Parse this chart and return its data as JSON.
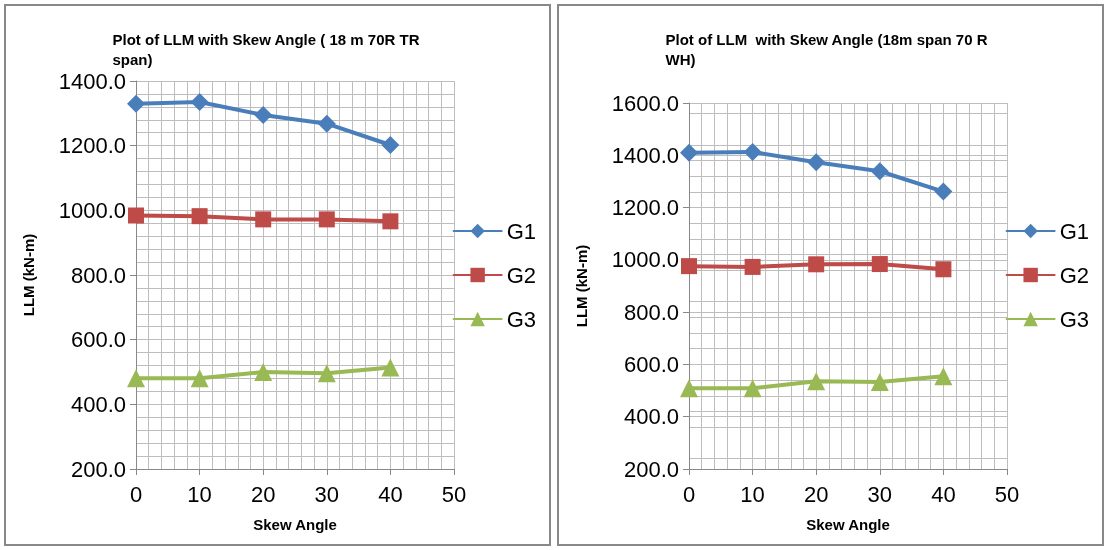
{
  "chart_data": [
    {
      "type": "line",
      "title": "Plot of LLM with Skew Angle ( 18 m 70R TR span)",
      "xlabel": "Skew Angle",
      "ylabel": "LLM (kN-m)",
      "x": [
        0,
        10,
        20,
        30,
        40
      ],
      "xlim": [
        0,
        50
      ],
      "xticks": [
        0,
        10,
        20,
        30,
        40,
        50
      ],
      "ylim": [
        200,
        1400
      ],
      "yticks": [
        {
          "value": 200,
          "label": "200.0"
        },
        {
          "value": 400,
          "label": "400.0"
        },
        {
          "value": 600,
          "label": "600.0"
        },
        {
          "value": 800,
          "label": "800.0"
        },
        {
          "value": 1000,
          "label": "1000.0"
        },
        {
          "value": 1200,
          "label": "1200.0"
        },
        {
          "value": 1400,
          "label": "1400.0"
        }
      ],
      "grid": true,
      "legend": "right",
      "series": [
        {
          "name": "G1",
          "color": "#4a7ebb",
          "marker": "diamond",
          "values": [
            1330,
            1335,
            1295,
            1268,
            1202
          ]
        },
        {
          "name": "G2",
          "color": "#be4b48",
          "marker": "square",
          "values": [
            984,
            982,
            972,
            972,
            966
          ]
        },
        {
          "name": "G3",
          "color": "#98b954",
          "marker": "triangle",
          "values": [
            481,
            481,
            500,
            496,
            514
          ]
        }
      ]
    },
    {
      "type": "line",
      "title": "Plot of LLM  with Skew Angle (18m span 70 R WH)",
      "xlabel": "Skew Angle",
      "ylabel": "LLM (kN-m)",
      "x": [
        0,
        10,
        20,
        30,
        40
      ],
      "xlim": [
        0,
        50
      ],
      "xticks": [
        0,
        10,
        20,
        30,
        40,
        50
      ],
      "ylim": [
        200,
        1600
      ],
      "yticks": [
        {
          "value": 200,
          "label": "200.0"
        },
        {
          "value": 400,
          "label": "400.0"
        },
        {
          "value": 600,
          "label": "600.0"
        },
        {
          "value": 800,
          "label": "800.0"
        },
        {
          "value": 1000,
          "label": "1000.0"
        },
        {
          "value": 1200,
          "label": "1200.0"
        },
        {
          "value": 1400,
          "label": "1400.0"
        },
        {
          "value": 1600,
          "label": "1600.0"
        }
      ],
      "grid": true,
      "legend": "right",
      "series": [
        {
          "name": "G1",
          "color": "#4a7ebb",
          "marker": "diamond",
          "values": [
            1410,
            1413,
            1373,
            1339,
            1261
          ]
        },
        {
          "name": "G2",
          "color": "#be4b48",
          "marker": "square",
          "values": [
            976,
            973,
            983,
            984,
            964
          ]
        },
        {
          "name": "G3",
          "color": "#98b954",
          "marker": "triangle",
          "values": [
            509,
            509,
            536,
            533,
            555
          ]
        }
      ]
    }
  ]
}
